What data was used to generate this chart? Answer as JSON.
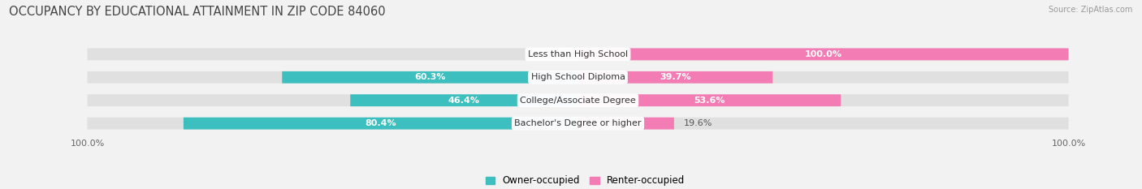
{
  "title": "OCCUPANCY BY EDUCATIONAL ATTAINMENT IN ZIP CODE 84060",
  "source": "Source: ZipAtlas.com",
  "categories": [
    "Less than High School",
    "High School Diploma",
    "College/Associate Degree",
    "Bachelor's Degree or higher"
  ],
  "owner_values": [
    0.0,
    60.3,
    46.4,
    80.4
  ],
  "renter_values": [
    100.0,
    39.7,
    53.6,
    19.6
  ],
  "owner_color": "#3dbfbf",
  "renter_color": "#f47cb4",
  "owner_label": "Owner-occupied",
  "renter_label": "Renter-occupied",
  "background_color": "#f2f2f2",
  "bar_background": "#e0e0e0",
  "axis_label_left": "100.0%",
  "axis_label_right": "100.0%",
  "title_fontsize": 10.5,
  "label_fontsize": 8,
  "bar_height": 0.52,
  "figsize": [
    14.06,
    2.33
  ],
  "dpi": 100
}
